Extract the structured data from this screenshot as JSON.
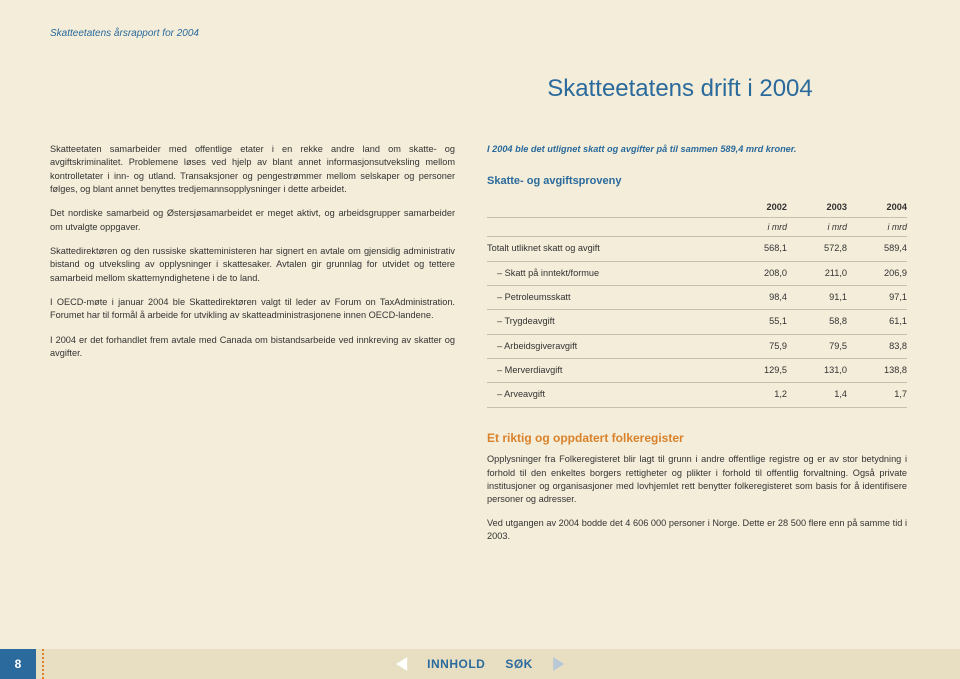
{
  "running_head": "Skatteetatens årsrapport for 2004",
  "title": "Skatteetatens drift i 2004",
  "left_paragraphs": [
    "Skatteetaten samarbeider med offentlige etater i en rekke andre land om skatte- og avgiftskriminalitet. Problemene løses ved hjelp av blant annet informasjonsutveksling mellom kontrolletater i inn- og utland. Transaksjoner og pengestrømmer mellom selskaper og personer følges, og blant annet benyttes tredjemannsopplysninger i dette arbeidet.",
    "Det nordiske samarbeid og Østersjøsamarbeidet er meget aktivt, og arbeidsgrupper samarbeider om utvalgte oppgaver.",
    "Skattedirektøren og den russiske skatteministeren har signert en avtale om gjensidig administrativ bistand og utveksling av opplysninger i skattesaker. Avtalen gir grunnlag for utvidet og tettere samarbeid mellom skattemyndighetene i de to land.",
    "I OECD-møte i januar 2004 ble Skattedirektøren valgt til leder av Forum on TaxAdministration. Forumet har til formål å arbeide for utvikling av skatteadministrasjonene innen OECD-landene.",
    "I 2004 er det forhandlet frem avtale med Canada om bistandsarbeide ved innkreving av skatter og avgifter."
  ],
  "right_lead": "I 2004 ble det utlignet skatt og avgifter på til sammen 589,4 mrd kroner.",
  "table_head": "Skatte- og avgiftsproveny",
  "table": {
    "years": [
      "2002",
      "2003",
      "2004"
    ],
    "unit": "i mrd",
    "rows": [
      {
        "label": "Totalt utliknet skatt og avgift",
        "indent": false,
        "v": [
          "568,1",
          "572,8",
          "589,4"
        ]
      },
      {
        "label": "Skatt på inntekt/formue",
        "indent": true,
        "v": [
          "208,0",
          "211,0",
          "206,9"
        ]
      },
      {
        "label": "Petroleumsskatt",
        "indent": true,
        "v": [
          "98,4",
          "91,1",
          "97,1"
        ]
      },
      {
        "label": "Trygdeavgift",
        "indent": true,
        "v": [
          "55,1",
          "58,8",
          "61,1"
        ]
      },
      {
        "label": "Arbeidsgiveravgift",
        "indent": true,
        "v": [
          "75,9",
          "79,5",
          "83,8"
        ]
      },
      {
        "label": "Merverdiavgift",
        "indent": true,
        "v": [
          "129,5",
          "131,0",
          "138,8"
        ]
      },
      {
        "label": "Arveavgift",
        "indent": true,
        "v": [
          "1,2",
          "1,4",
          "1,7"
        ]
      }
    ]
  },
  "section2": {
    "heading": "Et riktig og oppdatert folkeregister",
    "paragraphs": [
      "Opplysninger fra Folkeregisteret blir lagt til grunn i andre offentlige registre og er av stor betydning i forhold til den enkeltes borgers rettigheter og plikter i forhold til offentlig forvaltning. Også private institusjoner og organisasjoner med lovhjemlet rett benytter folkeregisteret som basis for å identifisere personer og adresser.",
      "Ved utgangen av 2004 bodde det 4 606 000 personer i Norge. Dette er 28 500 flere enn på samme tid i 2003."
    ]
  },
  "footer": {
    "page": "8",
    "innhold": "INNHOLD",
    "sok": "SØK"
  },
  "colors": {
    "page_bg": "#f4edd9",
    "footer_bg": "#e8dfc2",
    "blue": "#2a6a9c",
    "orange": "#d9822b",
    "rule": "#c9c1a9"
  }
}
